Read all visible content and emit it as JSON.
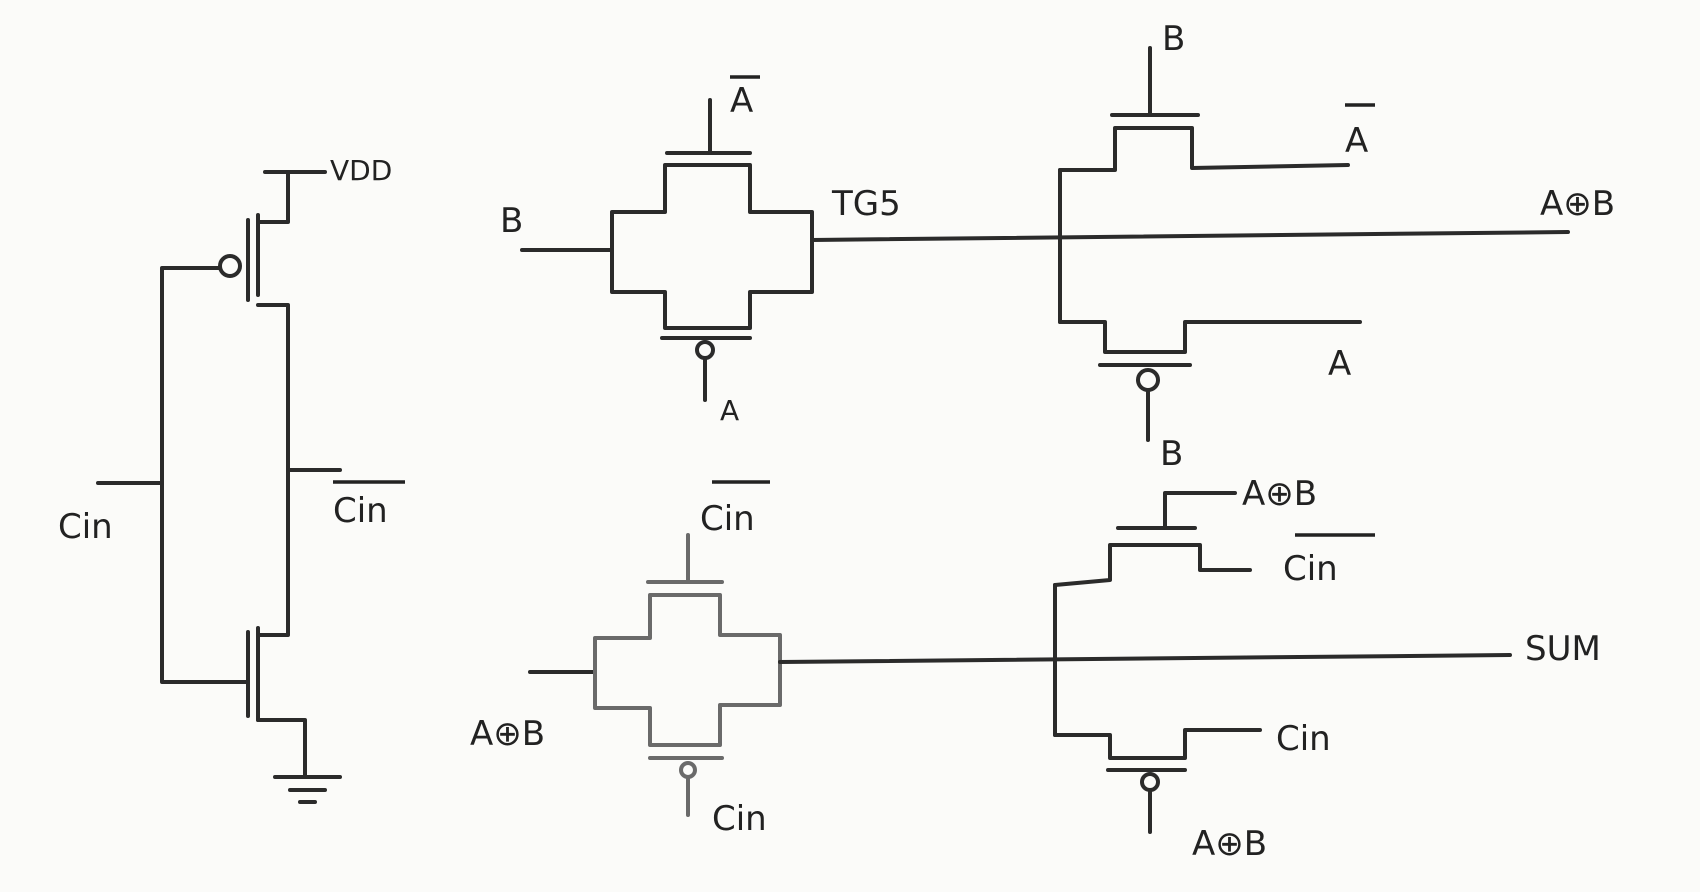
{
  "inverter": {
    "supply": "VDD",
    "input": "Cin",
    "output": "Cin"
  },
  "xor_stage": {
    "tg_input": "B",
    "tg_gate_top": "A",
    "tg_gate_bottom": "A",
    "tg_name": "TG5",
    "pass_gate_top": "B",
    "pass_source_top": "A",
    "pass_source_bottom": "A",
    "pass_gate_bottom": "B",
    "output": "A⊕B"
  },
  "sum_stage": {
    "tg_input": "A⊕B",
    "tg_gate_top": "Cin",
    "tg_gate_bottom": "Cin",
    "pass_gate_top": "A⊕B",
    "pass_source_top": "Cin",
    "pass_source_bottom": "Cin",
    "pass_gate_bottom": "A⊕B",
    "output": "SUM"
  },
  "bars": {
    "overbar": "overbar-line"
  }
}
